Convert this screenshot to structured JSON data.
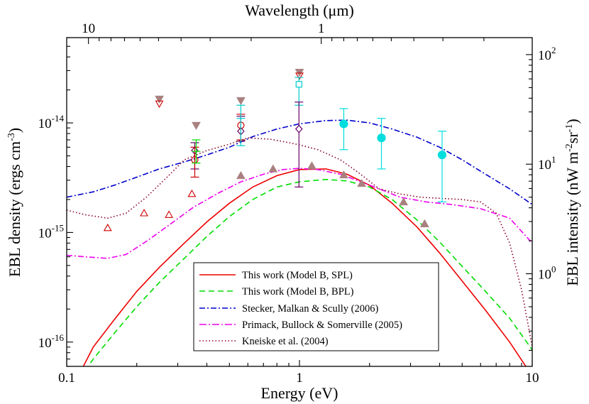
{
  "chart_data": {
    "type": "line",
    "xlabel": "Energy (eV)",
    "ylabel": "EBL density (ergs cm-3)",
    "top_axis_label": "Wavelength (μm)",
    "right_axis_label": "EBL intensity (nW m-2sr-1)",
    "x_scale": "log",
    "y_scale": "log",
    "xlim": [
      0.1,
      10
    ],
    "ylim": [
      6e-17,
      6e-14
    ],
    "x_ticks": [
      {
        "value": 0.1,
        "label": "0.1"
      },
      {
        "value": 1,
        "label": "1"
      },
      {
        "value": 10,
        "label": "10"
      }
    ],
    "y_ticks": [
      {
        "value": 1e-16,
        "mantissa": "10",
        "exp": "-16"
      },
      {
        "value": 1e-15,
        "mantissa": "10",
        "exp": "-15"
      },
      {
        "value": 1e-14,
        "mantissa": "10",
        "exp": "-14"
      }
    ],
    "top_ticks": [
      {
        "energy": 0.124,
        "label": "10"
      },
      {
        "energy": 1.24,
        "label": "1"
      }
    ],
    "right_ticks": [
      {
        "density": 4.2e-16,
        "mantissa": "10",
        "exp": "0"
      },
      {
        "density": 4.2e-15,
        "mantissa": "10",
        "exp": "1"
      },
      {
        "density": 4.2e-14,
        "mantissa": "10",
        "exp": "2"
      }
    ],
    "legend": {
      "placement": "bottom-center",
      "entries": [
        "This work (Model B, SPL)",
        "This work (Model B, BPL)",
        "Stecker, Malkan & Scully (2006)",
        "Primack, Bullock & Somerville (2005)",
        "Kneiske et al. (2004)"
      ]
    },
    "series": [
      {
        "name": "This work (Model B, SPL)",
        "color": "#ee0000",
        "style": "solid",
        "x": [
          0.11,
          0.13,
          0.16,
          0.2,
          0.25,
          0.32,
          0.4,
          0.5,
          0.63,
          0.8,
          1.0,
          1.3,
          1.6,
          2.0,
          2.5,
          3.2,
          4.0,
          5.0,
          6.3,
          8.0,
          10.0
        ],
        "y": [
          4.5e-17,
          9e-17,
          1.6e-16,
          2.9e-16,
          4.8e-16,
          8e-16,
          1.25e-15,
          1.85e-15,
          2.6e-15,
          3.3e-15,
          3.75e-15,
          3.8e-15,
          3.4e-15,
          2.7e-15,
          1.85e-15,
          1.12e-15,
          6.5e-16,
          3.6e-16,
          1.95e-16,
          1e-16,
          4.9e-17
        ]
      },
      {
        "name": "This work (Model B, BPL)",
        "color": "#00dd00",
        "style": "dashed",
        "x": [
          0.12,
          0.13,
          0.16,
          0.2,
          0.25,
          0.32,
          0.4,
          0.5,
          0.63,
          0.8,
          1.0,
          1.3,
          1.6,
          2.0,
          2.5,
          3.2,
          4.0,
          5.0,
          6.3,
          8.0,
          10.0
        ],
        "y": [
          5.5e-17,
          7e-17,
          1.2e-16,
          2.1e-16,
          3.5e-16,
          5.8e-16,
          9.2e-16,
          1.4e-15,
          2e-15,
          2.6e-15,
          2.9e-15,
          3.05e-15,
          2.95e-15,
          2.6e-15,
          2e-15,
          1.3e-15,
          8.2e-16,
          4.9e-16,
          2.9e-16,
          1.65e-16,
          8.5e-17
        ]
      },
      {
        "name": "Stecker, Malkan & Scully (2006)",
        "color": "#0000cc",
        "style": "dash-dot",
        "x": [
          0.1,
          0.13,
          0.16,
          0.2,
          0.25,
          0.32,
          0.4,
          0.5,
          0.63,
          0.8,
          1.0,
          1.3,
          1.6,
          2.0,
          2.5,
          3.2,
          4.0,
          5.0,
          6.3,
          8.0,
          10.0
        ],
        "y": [
          2.1e-15,
          2.35e-15,
          2.7e-15,
          3.2e-15,
          3.8e-15,
          4.4e-15,
          5.1e-15,
          6e-15,
          7.5e-15,
          8.8e-15,
          9.8e-15,
          1.05e-14,
          1.06e-14,
          1e-14,
          8.8e-15,
          7.4e-15,
          6e-15,
          4.6e-15,
          3.4e-15,
          2.5e-15,
          1.8e-15
        ]
      },
      {
        "name": "Primack, Bullock & Somerville (2005)",
        "color": "#ee00ee",
        "style": "dash-dot",
        "x": [
          0.1,
          0.12,
          0.15,
          0.18,
          0.22,
          0.28,
          0.35,
          0.45,
          0.56,
          0.7,
          0.85,
          1.0,
          1.2,
          1.5,
          1.8,
          2.2,
          2.7,
          3.5,
          4.5,
          6.0,
          8.0,
          10.0
        ],
        "y": [
          6.2e-16,
          6e-16,
          5.8e-16,
          6.3e-16,
          8.3e-16,
          1.2e-15,
          1.7e-15,
          2.3e-15,
          2.9e-15,
          3.4e-15,
          3.75e-15,
          3.85e-15,
          3.75e-15,
          3.4e-15,
          2.95e-15,
          2.5e-15,
          2.1e-15,
          1.9e-15,
          1.8e-15,
          1.65e-15,
          1.35e-15,
          8e-16
        ]
      },
      {
        "name": "Kneiske et al. (2004)",
        "color": "#880022",
        "style": "dotted",
        "x": [
          0.1,
          0.12,
          0.15,
          0.18,
          0.22,
          0.27,
          0.32,
          0.4,
          0.5,
          0.6,
          0.75,
          0.9,
          1.0,
          1.2,
          1.5,
          1.8,
          2.2,
          2.7,
          3.3,
          4.0,
          5.0,
          6.0,
          7.0,
          8.0,
          9.0,
          10.0
        ],
        "y": [
          1.6e-15,
          1.45e-15,
          1.35e-15,
          1.5e-15,
          2.1e-15,
          3.2e-15,
          4.6e-15,
          5.6e-15,
          6.4e-15,
          7.3e-15,
          7.1e-15,
          6.6e-15,
          6.3e-15,
          5.7e-15,
          4.6e-15,
          3.5e-15,
          2.5e-15,
          2.25e-15,
          2.1e-15,
          2.05e-15,
          2e-15,
          1.9e-15,
          1.5e-15,
          8e-16,
          3e-16,
          9e-17
        ]
      }
    ],
    "markers": [
      {
        "kind": "filled-tri-down",
        "color": "#a98080",
        "x": 0.25,
        "y": 1.65e-14
      },
      {
        "kind": "filled-tri-down",
        "color": "#a98080",
        "x": 0.36,
        "y": 9.5e-15
      },
      {
        "kind": "filled-tri-down",
        "color": "#a98080",
        "x": 0.56,
        "y": 1.6e-14
      },
      {
        "kind": "filled-tri-down",
        "color": "#a98080",
        "x": 1.0,
        "y": 2.9e-14
      },
      {
        "kind": "open-tri-down",
        "color": "#cc0000",
        "x": 0.25,
        "y": 1.5e-14
      },
      {
        "kind": "open-tri-down",
        "color": "#cc0000",
        "x": 1.0,
        "y": 2.7e-14
      },
      {
        "kind": "open-tri-up",
        "color": "#cc0000",
        "x": 0.15,
        "y": 1.1e-15
      },
      {
        "kind": "open-tri-up",
        "color": "#cc0000",
        "x": 0.215,
        "y": 1.5e-15
      },
      {
        "kind": "open-tri-up",
        "color": "#cc0000",
        "x": 0.275,
        "y": 1.45e-15
      },
      {
        "kind": "open-tri-up",
        "color": "#cc0000",
        "x": 0.345,
        "y": 2.25e-15
      },
      {
        "kind": "filled-tri-up",
        "color": "#a98080",
        "x": 0.56,
        "y": 3.3e-15
      },
      {
        "kind": "filled-tri-up",
        "color": "#a98080",
        "x": 0.77,
        "y": 3.8e-15
      },
      {
        "kind": "filled-tri-up",
        "color": "#a98080",
        "x": 1.13,
        "y": 4.05e-15
      },
      {
        "kind": "filled-tri-up",
        "color": "#a98080",
        "x": 1.55,
        "y": 3.35e-15
      },
      {
        "kind": "filled-tri-up",
        "color": "#a98080",
        "x": 1.85,
        "y": 2.8e-15
      },
      {
        "kind": "filled-tri-up",
        "color": "#a98080",
        "x": 2.8,
        "y": 1.9e-15
      },
      {
        "kind": "filled-tri-up",
        "color": "#a98080",
        "x": 3.45,
        "y": 1.2e-15
      }
    ],
    "error_points": [
      {
        "kind": "circle",
        "color": "#00dddd",
        "filled": true,
        "x": 1.55,
        "y": 9.8e-15,
        "lo": 5.7e-15,
        "hi": 1.35e-14
      },
      {
        "kind": "circle",
        "color": "#00dddd",
        "filled": true,
        "x": 2.25,
        "y": 7.3e-15,
        "lo": 3.8e-15,
        "hi": 1.1e-14
      },
      {
        "kind": "circle",
        "color": "#00dddd",
        "filled": true,
        "x": 4.1,
        "y": 5.1e-15,
        "lo": 1.9e-15,
        "hi": 8.4e-15
      },
      {
        "kind": "square",
        "color": "#00cccc",
        "filled": false,
        "x": 0.995,
        "y": 2.25e-14,
        "lo": 1.45e-14,
        "hi": 2.6e-14
      },
      {
        "kind": "diamond",
        "color": "#660066",
        "filled": false,
        "x": 0.995,
        "y": 8.8e-15,
        "lo": 2.6e-15,
        "hi": 1.55e-14
      },
      {
        "kind": "diamond",
        "color": "#660066",
        "filled": false,
        "x": 0.56,
        "y": 8.4e-15,
        "lo": 6.8e-15,
        "hi": 1.15e-14
      },
      {
        "kind": "circle",
        "color": "#cc0000",
        "filled": false,
        "x": 0.56,
        "y": 9.5e-15,
        "lo": 7e-15,
        "hi": 1.2e-14
      },
      {
        "kind": "bar",
        "color": "#00cccc",
        "filled": false,
        "x": 0.56,
        "y": 1.1e-14,
        "lo": 6.2e-15,
        "hi": 1.45e-14
      },
      {
        "kind": "diamond",
        "color": "#660066",
        "filled": false,
        "x": 0.355,
        "y": 5.6e-15,
        "lo": 3.8e-15,
        "hi": 6.6e-15
      },
      {
        "kind": "circle",
        "color": "#cc0000",
        "filled": false,
        "x": 0.355,
        "y": 4.6e-15,
        "lo": 3.2e-15,
        "hi": 6e-15
      },
      {
        "kind": "bar",
        "color": "#00dd00",
        "filled": false,
        "x": 0.36,
        "y": 5.5e-15,
        "lo": 4.3e-15,
        "hi": 7e-15
      }
    ]
  }
}
